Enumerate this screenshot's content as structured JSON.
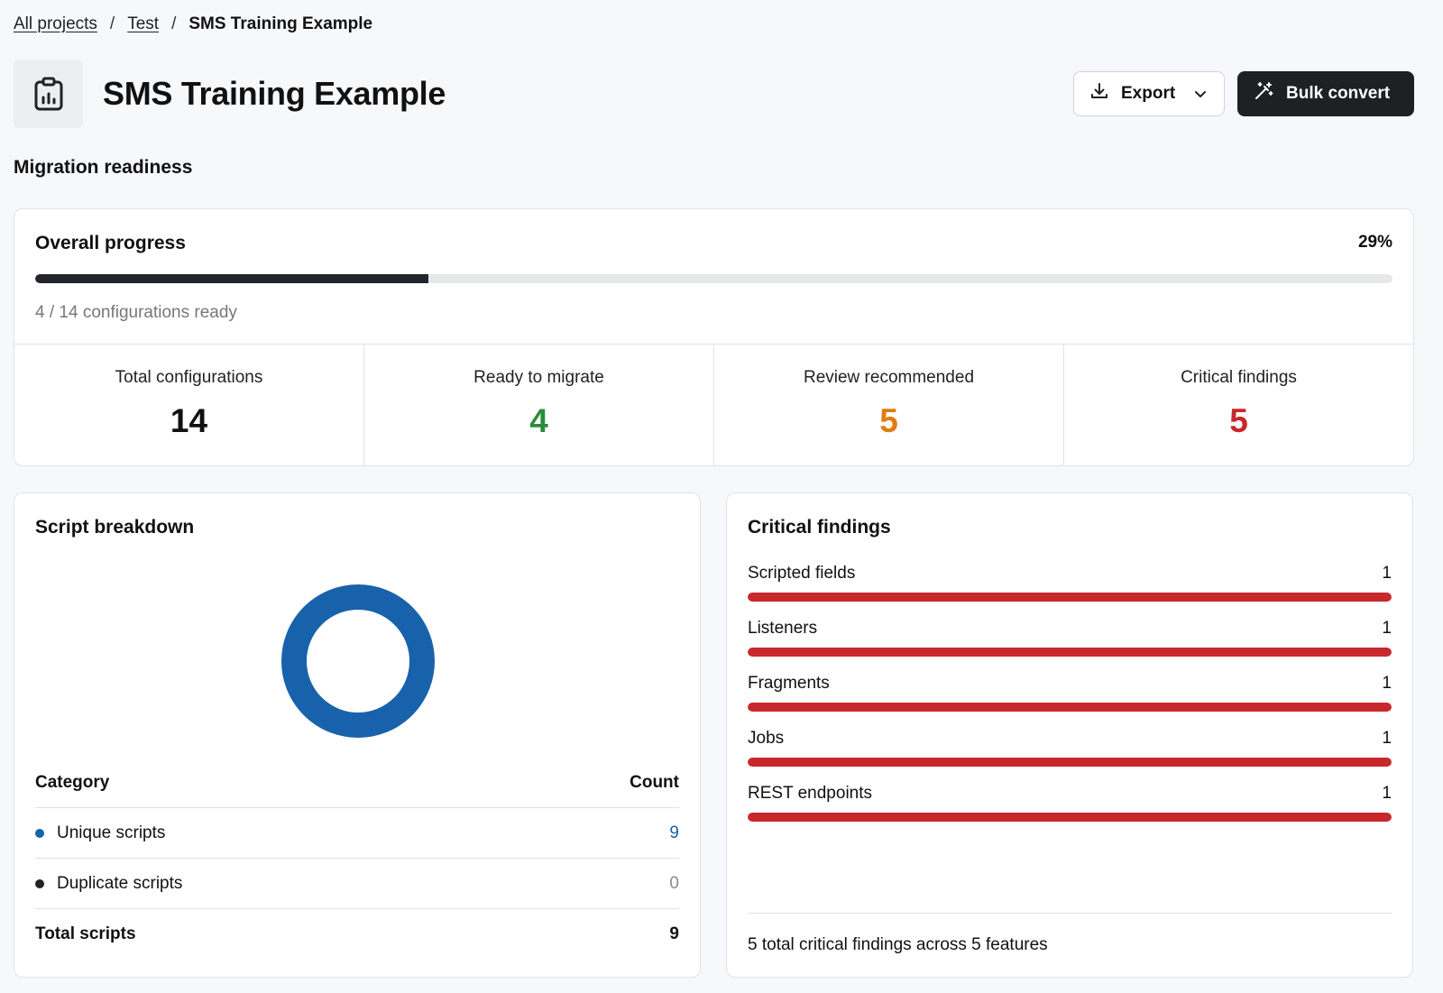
{
  "breadcrumb": {
    "root": "All projects",
    "parent": "Test",
    "current": "SMS Training Example"
  },
  "header": {
    "title": "SMS Training Example",
    "icon": "clipboard-chart-icon",
    "export_label": "Export",
    "bulk_convert_label": "Bulk convert"
  },
  "section_title": "Migration readiness",
  "overall": {
    "label": "Overall progress",
    "percent_text": "29%",
    "progress_fraction": 0.29,
    "sub_text": "4 / 14 configurations ready",
    "stats": [
      {
        "label": "Total configurations",
        "value": "14",
        "color": "#111111"
      },
      {
        "label": "Ready to migrate",
        "value": "4",
        "color": "#2e8b3a"
      },
      {
        "label": "Review recommended",
        "value": "5",
        "color": "#e07c12"
      },
      {
        "label": "Critical findings",
        "value": "5",
        "color": "#c8282c"
      }
    ]
  },
  "script_breakdown": {
    "title": "Script breakdown",
    "header": {
      "category": "Category",
      "count": "Count"
    },
    "rows": [
      {
        "label": "Unique scripts",
        "count": "9",
        "dot_color": "#1862ab",
        "count_color": "#1862ab"
      },
      {
        "label": "Duplicate scripts",
        "count": "0",
        "dot_color": "#222222",
        "count_color": "#8a8a8a"
      }
    ],
    "total": {
      "label": "Total scripts",
      "count": "9"
    },
    "donut_color": "#1862ab"
  },
  "critical_findings": {
    "title": "Critical findings",
    "bar_color": "#c8282c",
    "items": [
      {
        "label": "Scripted fields",
        "count": "1",
        "fraction": 1.0
      },
      {
        "label": "Listeners",
        "count": "1",
        "fraction": 1.0
      },
      {
        "label": "Fragments",
        "count": "1",
        "fraction": 1.0
      },
      {
        "label": "Jobs",
        "count": "1",
        "fraction": 1.0
      },
      {
        "label": "REST endpoints",
        "count": "1",
        "fraction": 1.0
      }
    ],
    "footer": "5 total critical findings across 5 features"
  }
}
